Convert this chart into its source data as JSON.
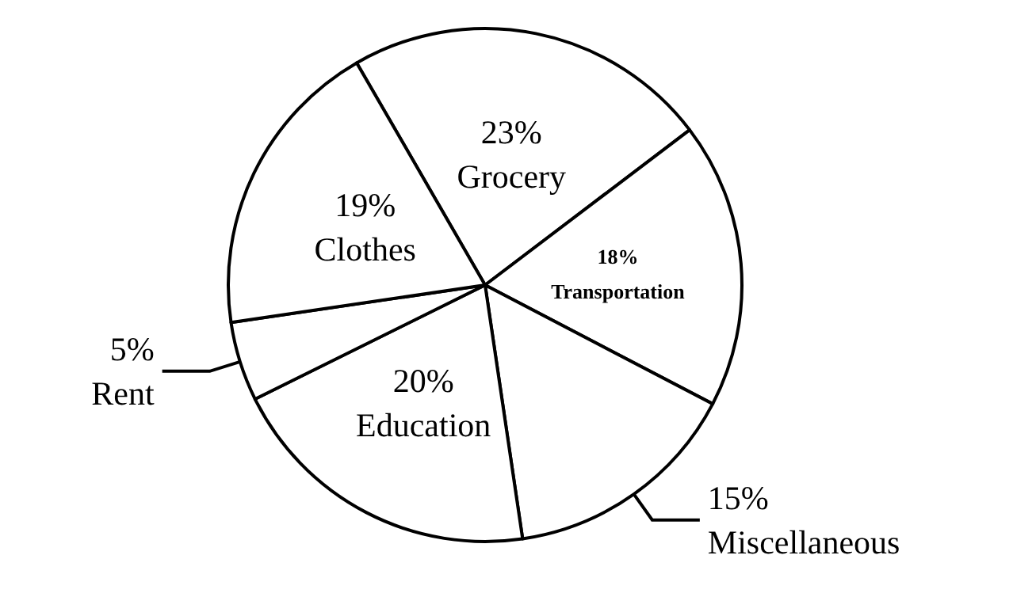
{
  "chart_data": {
    "type": "pie",
    "categories": [
      "Grocery",
      "Transportation",
      "Miscellaneous",
      "Education",
      "Rent",
      "Clothes"
    ],
    "values": [
      23,
      18,
      15,
      20,
      5,
      19
    ],
    "value_labels": [
      "23%",
      "18%",
      "15%",
      "20%",
      "5%",
      "19%"
    ],
    "colors": [
      "#ffffff",
      "#ffffff",
      "#ffffff",
      "#ffffff",
      "#ffffff",
      "#ffffff"
    ],
    "legend": false
  }
}
